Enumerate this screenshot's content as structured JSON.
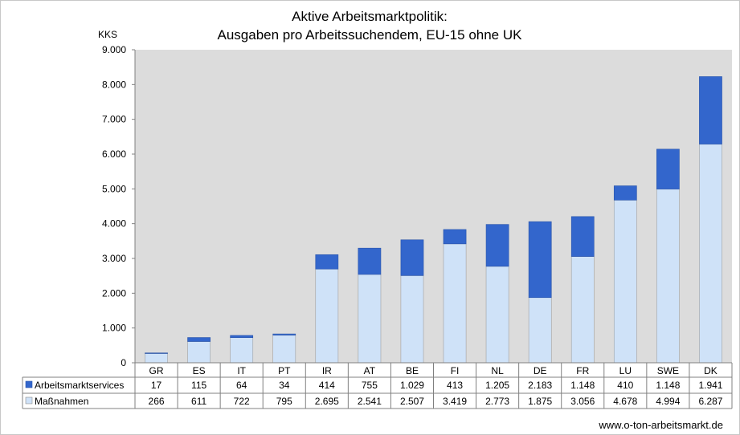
{
  "chart_data": {
    "type": "bar",
    "stacked": true,
    "title": "Aktive Arbeitsmarktpolitik:",
    "subtitle": "Ausgaben pro Arbeitssuchendem, EU-15 ohne UK",
    "ylabel": "KKS",
    "ylim": [
      0,
      9000
    ],
    "yticks": [
      "0",
      "1.000",
      "2.000",
      "3.000",
      "4.000",
      "5.000",
      "6.000",
      "7.000",
      "8.000",
      "9.000"
    ],
    "categories": [
      "GR",
      "ES",
      "IT",
      "PT",
      "IR",
      "AT",
      "BE",
      "FI",
      "NL",
      "DE",
      "FR",
      "LU",
      "SWE",
      "DK"
    ],
    "series": [
      {
        "name": "Maßnahmen",
        "color": "#cfe2f8",
        "values": [
          266,
          611,
          722,
          795,
          2695,
          2541,
          2507,
          3419,
          2773,
          1875,
          3056,
          4678,
          4994,
          6287
        ],
        "labels": [
          "266",
          "611",
          "722",
          "795",
          "2.695",
          "2.541",
          "2.507",
          "3.419",
          "2.773",
          "1.875",
          "3.056",
          "4.678",
          "4.994",
          "6.287"
        ]
      },
      {
        "name": "Arbeitsmarktservices",
        "color": "#3366cc",
        "values": [
          17,
          115,
          64,
          34,
          414,
          755,
          1029,
          413,
          1205,
          2183,
          1148,
          410,
          1148,
          1941
        ],
        "labels": [
          "17",
          "115",
          "64",
          "34",
          "414",
          "755",
          "1.029",
          "413",
          "1.205",
          "2.183",
          "1.148",
          "410",
          "1.148",
          "1.941"
        ]
      }
    ],
    "table_row_order": [
      "Arbeitsmarktservices",
      "Maßnahmen"
    ],
    "grid": false,
    "plot_background": "#dcdcdc",
    "legend": "data-table"
  },
  "footer": "www.o-ton-arbeitsmarkt.de"
}
